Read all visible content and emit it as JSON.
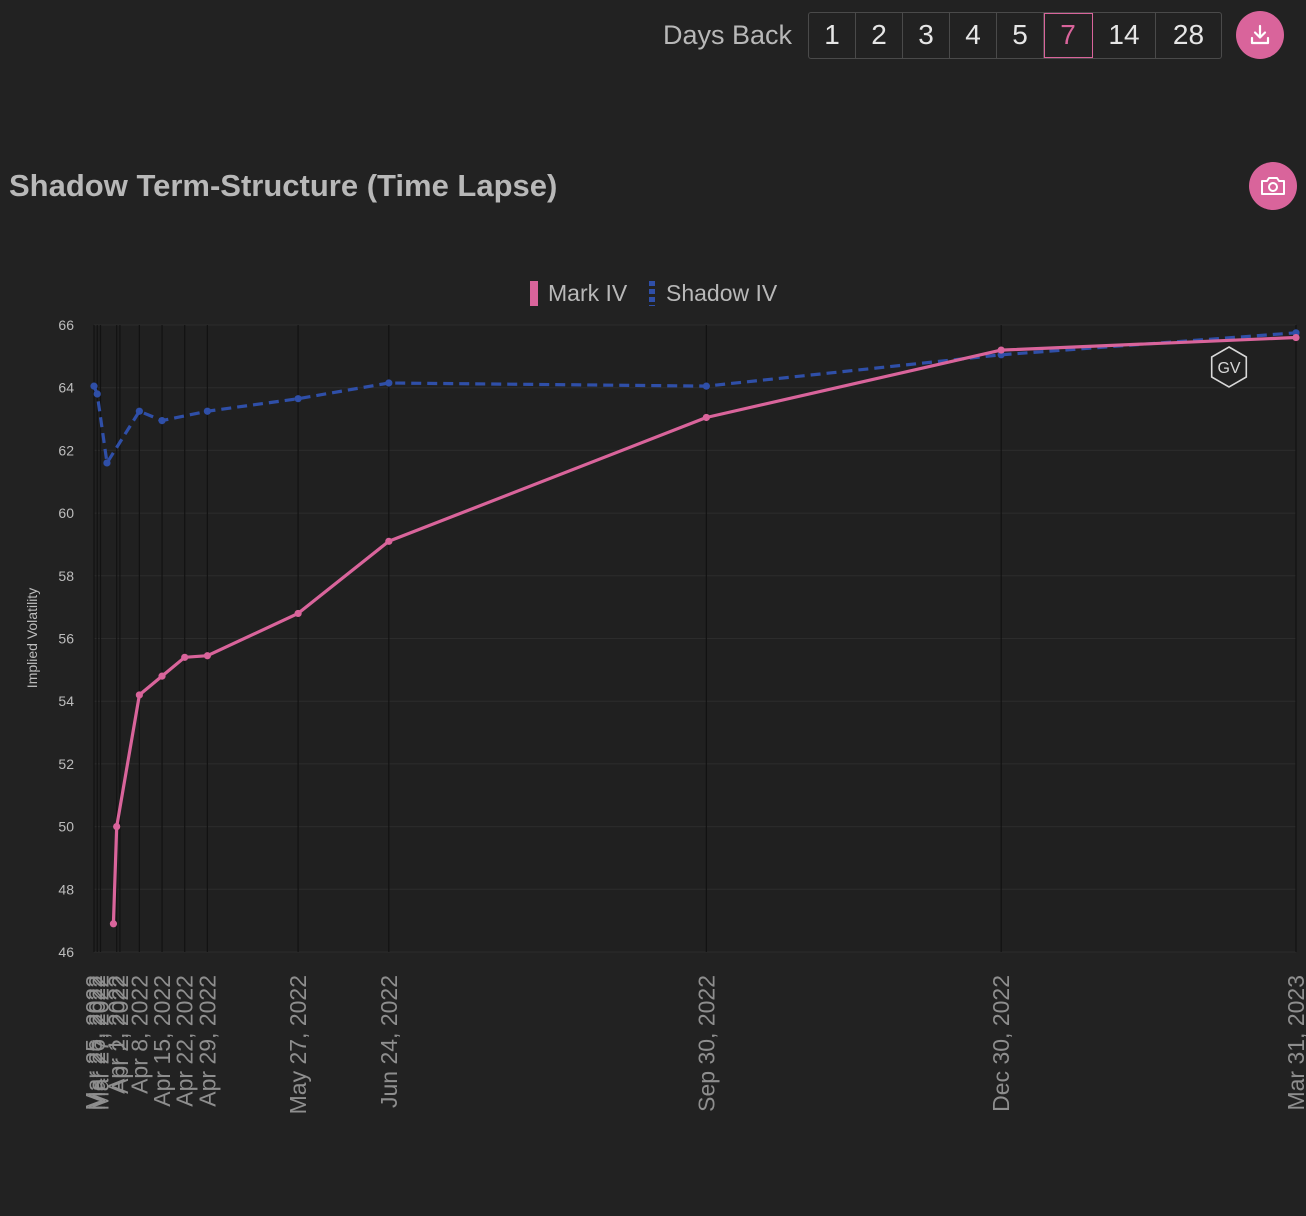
{
  "toolbar": {
    "days_back_label": "Days Back",
    "days_options": [
      "1",
      "2",
      "3",
      "4",
      "5",
      "7",
      "14",
      "28"
    ],
    "selected_days": "7",
    "download_icon": "download-icon"
  },
  "page": {
    "title": "Shadow Term-Structure (Time Lapse)",
    "camera_icon": "camera-icon",
    "watermark": "GV"
  },
  "colors": {
    "background": "#222222",
    "accent": "#d9649b",
    "mark_iv": "#d9649b",
    "shadow_iv": "#2f4fa8"
  },
  "chart_data": {
    "type": "line",
    "ylabel": "Implied Volatility",
    "ylim": [
      46,
      66
    ],
    "yticks": [
      46,
      48,
      50,
      52,
      54,
      56,
      58,
      60,
      62,
      64,
      66
    ],
    "grid": true,
    "legend": "top-center",
    "x_tick_labels": [
      "Mar 25, 2022",
      "Mar 26, 2022",
      "Mar 27, 2022",
      "Apr 1, 2022",
      "Apr 2, 2022",
      "Apr 8, 2022",
      "Apr 15, 2022",
      "Apr 22, 2022",
      "Apr 29, 2022",
      "May 27, 2022",
      "Jun 24, 2022",
      "Sep 30, 2022",
      "Dec 30, 2022",
      "Mar 31, 2023"
    ],
    "series": [
      {
        "name": "Mark IV",
        "style": "solid",
        "points": [
          {
            "x": "2022-03-31",
            "y": 46.9
          },
          {
            "x": "2022-04-01",
            "y": 50.0
          },
          {
            "x": "2022-04-08",
            "y": 54.2
          },
          {
            "x": "2022-04-15",
            "y": 54.8
          },
          {
            "x": "2022-04-22",
            "y": 55.4
          },
          {
            "x": "2022-04-29",
            "y": 55.45
          },
          {
            "x": "2022-05-27",
            "y": 56.8
          },
          {
            "x": "2022-06-24",
            "y": 59.1
          },
          {
            "x": "2022-09-30",
            "y": 63.05
          },
          {
            "x": "2022-12-30",
            "y": 65.2
          },
          {
            "x": "2023-03-31",
            "y": 65.6
          }
        ]
      },
      {
        "name": "Shadow IV",
        "style": "dashed",
        "points": [
          {
            "x": "2022-03-25",
            "y": 64.05
          },
          {
            "x": "2022-03-26",
            "y": 63.8
          },
          {
            "x": "2022-03-29",
            "y": 61.6
          },
          {
            "x": "2022-04-08",
            "y": 63.25
          },
          {
            "x": "2022-04-15",
            "y": 62.95
          },
          {
            "x": "2022-04-29",
            "y": 63.25
          },
          {
            "x": "2022-05-27",
            "y": 63.65
          },
          {
            "x": "2022-06-24",
            "y": 64.15
          },
          {
            "x": "2022-09-30",
            "y": 64.05
          },
          {
            "x": "2022-12-30",
            "y": 65.05
          },
          {
            "x": "2023-03-31",
            "y": 65.75
          }
        ]
      }
    ]
  }
}
